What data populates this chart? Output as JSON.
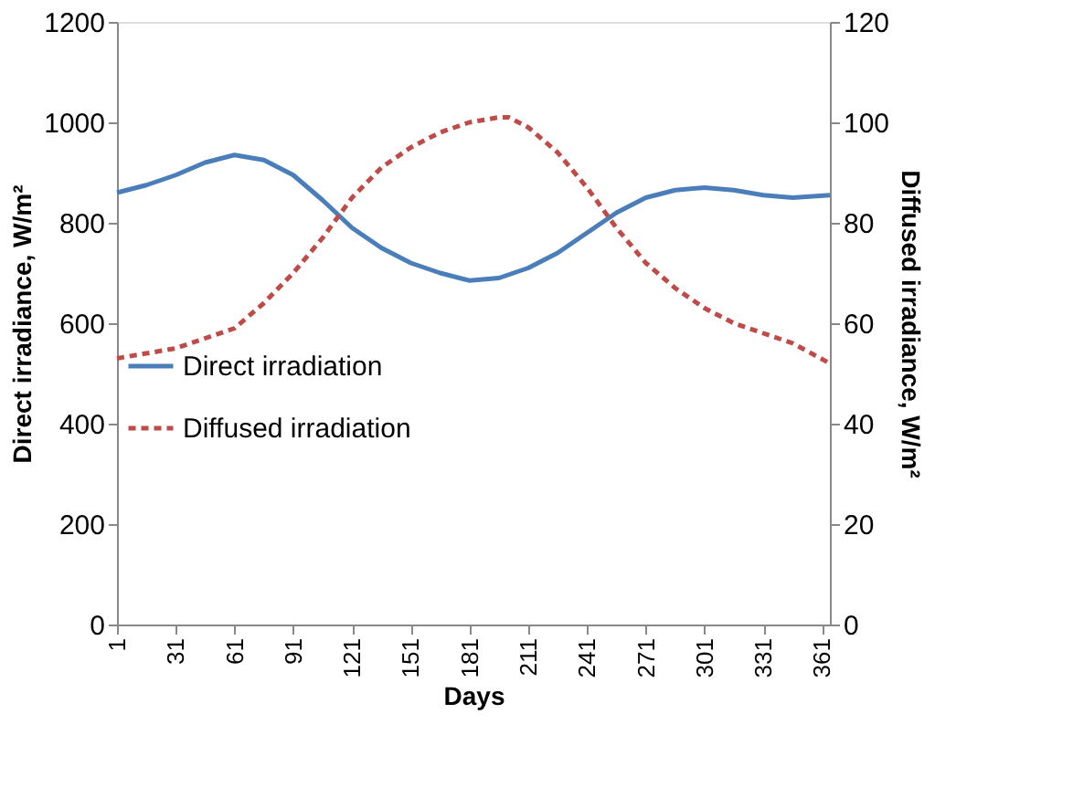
{
  "chart_data": {
    "type": "line",
    "xlabel": "Days",
    "ylabel": "Direct irradiance, W/m²",
    "y2label": "Diffused irradiance, W/m²",
    "xlim": [
      1,
      365
    ],
    "xticks": [
      1,
      31,
      61,
      91,
      121,
      151,
      181,
      211,
      241,
      271,
      301,
      331,
      361
    ],
    "ylim": [
      0,
      1200
    ],
    "yticks": [
      0,
      200,
      400,
      600,
      800,
      1000,
      1200
    ],
    "y2lim": [
      0,
      120
    ],
    "y2ticks": [
      0,
      20,
      40,
      60,
      80,
      100,
      120
    ],
    "grid": false,
    "legend": "bottom left",
    "marker": "none",
    "series": [
      {
        "name": "Direct irradiation",
        "color": "#4a7ebb",
        "line_style": "solid",
        "x": [
          1,
          16,
          31,
          46,
          61,
          76,
          91,
          106,
          121,
          136,
          151,
          166,
          181,
          196,
          211,
          226,
          241,
          256,
          271,
          286,
          301,
          316,
          331,
          346,
          365
        ],
        "values": [
          860,
          875,
          895,
          920,
          935,
          925,
          895,
          845,
          790,
          750,
          720,
          700,
          685,
          690,
          710,
          740,
          780,
          820,
          850,
          865,
          870,
          865,
          855,
          850,
          855
        ]
      },
      {
        "name": "Diffused irradiation",
        "color": "#be4b48",
        "line_style": "dashed",
        "axis": "y2",
        "x": [
          1,
          16,
          31,
          46,
          61,
          76,
          91,
          106,
          121,
          136,
          151,
          166,
          181,
          196,
          201,
          211,
          226,
          241,
          256,
          271,
          286,
          301,
          316,
          331,
          346,
          365
        ],
        "values": [
          53,
          54,
          55,
          57,
          59,
          64,
          70,
          77,
          85,
          91,
          95,
          98,
          100,
          101,
          101,
          99,
          94,
          87,
          79,
          72,
          67,
          63,
          60,
          58,
          56,
          52
        ]
      }
    ]
  }
}
